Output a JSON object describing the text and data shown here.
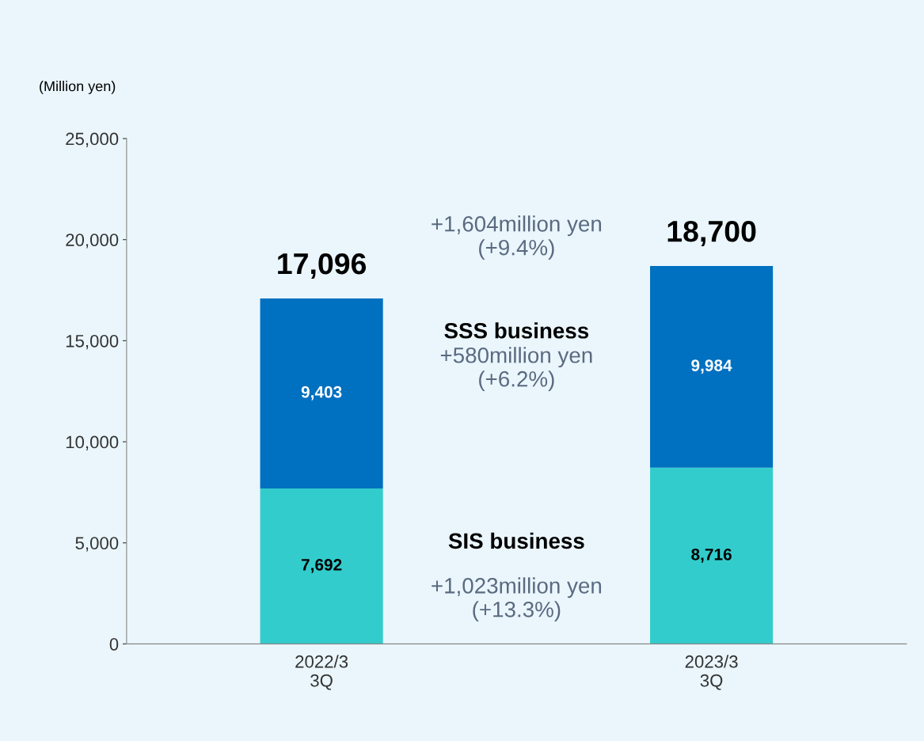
{
  "chart_data": {
    "type": "bar",
    "stacked": true,
    "ylabel": "(Million yen)",
    "categories": [
      "2022/3\n3Q",
      "2023/3\n3Q"
    ],
    "series": [
      {
        "name": "SIS business",
        "color": "#33cccc",
        "values": [
          7692,
          8716
        ],
        "value_labels": [
          "7,692",
          "8,716"
        ]
      },
      {
        "name": "SSS business",
        "color": "#0070c0",
        "values": [
          9403,
          9984
        ],
        "value_labels": [
          "9,403",
          "9,984"
        ]
      }
    ],
    "totals": [
      "17,096",
      "18,700"
    ],
    "ylim": [
      0,
      25000
    ],
    "yticks": [
      0,
      {
        "value": 5000,
        "label": "5,000"
      },
      {
        "value": 10000,
        "label": "10,000"
      },
      {
        "value": 15000,
        "label": "15,000"
      },
      {
        "value": 20000,
        "label": "20,000"
      },
      {
        "value": 25000,
        "label": "25,000"
      }
    ],
    "annotations": [
      "+1,604million yen\n(+9.4%)",
      "+580million yen\n(+6.2%)",
      "+1,023million yen\n(+13.3%)"
    ],
    "grid": false,
    "legend": false
  }
}
